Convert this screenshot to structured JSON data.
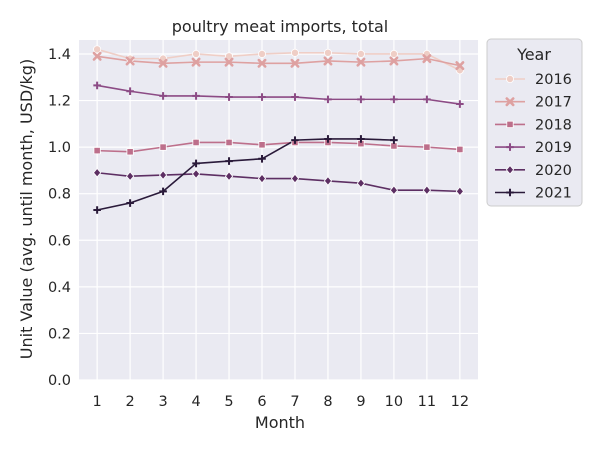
{
  "chart_data": {
    "type": "line",
    "title": "poultry meat imports, total",
    "xlabel": "Month",
    "ylabel": "Unit Value (avg. until month, USD/kg)",
    "x": [
      1,
      2,
      3,
      4,
      5,
      6,
      7,
      8,
      9,
      10,
      11,
      12
    ],
    "xlim": [
      0.45,
      12.55
    ],
    "ylim": [
      0,
      1.46
    ],
    "yticks": [
      0.0,
      0.2,
      0.4,
      0.6,
      0.8,
      1.0,
      1.2,
      1.4
    ],
    "ytick_labels": [
      "0.0",
      "0.2",
      "0.4",
      "0.6",
      "0.8",
      "1.0",
      "1.2",
      "1.4"
    ],
    "xtick_labels": [
      "1",
      "2",
      "3",
      "4",
      "5",
      "6",
      "7",
      "8",
      "9",
      "10",
      "11",
      "12"
    ],
    "grid": true,
    "legend": {
      "title": "Year",
      "placement": "outside-right-top"
    },
    "series": [
      {
        "name": "2016",
        "color": "#efcec6",
        "marker": "circle",
        "values": [
          1.42,
          1.38,
          1.38,
          1.4,
          1.39,
          1.4,
          1.405,
          1.405,
          1.4,
          1.4,
          1.4,
          1.33
        ]
      },
      {
        "name": "2017",
        "color": "#dea1a1",
        "marker": "x",
        "values": [
          1.39,
          1.37,
          1.36,
          1.365,
          1.365,
          1.36,
          1.36,
          1.37,
          1.365,
          1.37,
          1.38,
          1.35
        ]
      },
      {
        "name": "2018",
        "color": "#bd6f8b",
        "marker": "square",
        "values": [
          0.985,
          0.98,
          1.0,
          1.02,
          1.02,
          1.01,
          1.02,
          1.02,
          1.015,
          1.005,
          1.0,
          0.99
        ]
      },
      {
        "name": "2019",
        "color": "#8c4b85",
        "marker": "plus",
        "values": [
          1.265,
          1.24,
          1.22,
          1.22,
          1.215,
          1.215,
          1.215,
          1.205,
          1.205,
          1.205,
          1.205,
          1.185
        ]
      },
      {
        "name": "2020",
        "color": "#5d2f63",
        "marker": "diamond",
        "values": [
          0.89,
          0.875,
          0.88,
          0.885,
          0.875,
          0.865,
          0.865,
          0.855,
          0.845,
          0.815,
          0.815,
          0.81
        ]
      },
      {
        "name": "2021",
        "color": "#2a1a3a",
        "marker": "plus",
        "values": [
          0.73,
          0.76,
          0.81,
          0.93,
          0.94,
          0.95,
          1.03,
          1.035,
          1.035,
          1.03,
          null,
          null
        ]
      }
    ]
  }
}
